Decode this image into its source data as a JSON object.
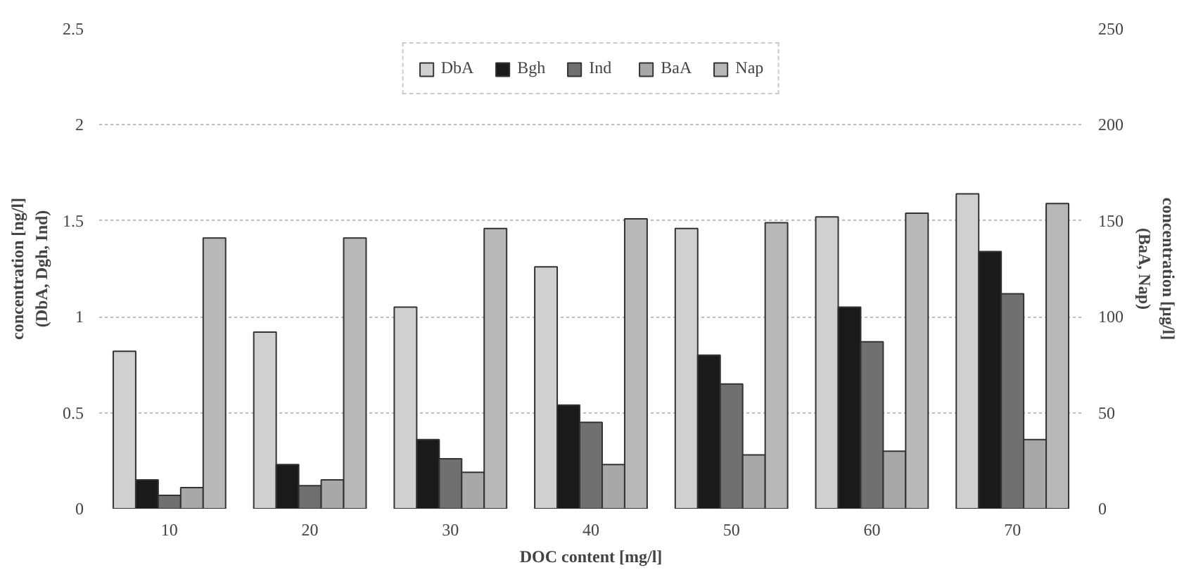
{
  "chart_data": {
    "type": "bar",
    "xlabel": "DOC content [mg/l]",
    "ylabel": "concentration [ng/l]\n(DbA, Dgh, Ind)",
    "y2label": "concentration [µg/l]\n(BaA, Nap)",
    "categories": [
      "10",
      "20",
      "30",
      "40",
      "50",
      "60",
      "70"
    ],
    "series": [
      {
        "name": "DbA",
        "color": "#d0d0d0",
        "values": [
          0.82,
          0.92,
          1.05,
          1.26,
          1.46,
          1.52,
          1.64
        ]
      },
      {
        "name": "Bgh",
        "color": "#1a1a1a",
        "values": [
          0.15,
          0.23,
          0.36,
          0.54,
          0.8,
          1.05,
          1.34
        ]
      },
      {
        "name": "Ind",
        "color": "#707070",
        "values": [
          0.07,
          0.12,
          0.26,
          0.45,
          0.65,
          0.87,
          1.12
        ]
      },
      {
        "name": "BaA",
        "color": "#a8a8a8",
        "axis": "y2",
        "values": [
          11,
          15,
          19,
          23,
          28,
          30,
          36
        ]
      },
      {
        "name": "Nap",
        "color": "#b8b8b8",
        "axis": "y2",
        "values": [
          141,
          141,
          146,
          151,
          149,
          154,
          159
        ]
      }
    ],
    "ylim": [
      0,
      2.5
    ],
    "yticks": [
      0,
      {
        "value": 0.5,
        "label": "0.5"
      },
      1,
      {
        "value": 1.5,
        "label": "1.5"
      },
      2,
      {
        "value": 2.5,
        "label": "2.5"
      }
    ],
    "y2lim": [
      0,
      250
    ],
    "y2ticks": [
      0,
      50,
      100,
      150,
      200,
      250
    ],
    "grid": "y",
    "legend": "top"
  }
}
